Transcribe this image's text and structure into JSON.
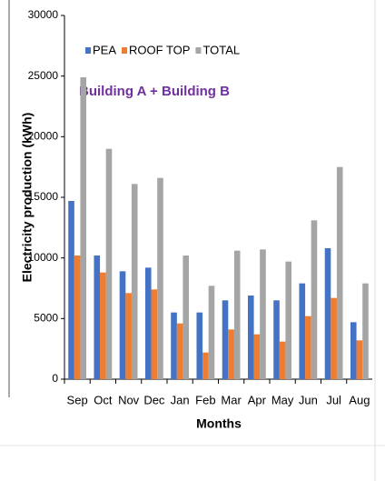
{
  "chart_data": {
    "type": "bar",
    "title": "Building A + Building B",
    "x_label": "Months",
    "y_label": "Electricity production (kWh)",
    "categories": [
      "Sep",
      "Oct",
      "Nov",
      "Dec",
      "Jan",
      "Feb",
      "Mar",
      "Apr",
      "May",
      "Jun",
      "Jul",
      "Aug"
    ],
    "series": [
      {
        "name": "PEA",
        "color": "#4472c4",
        "values": [
          14700,
          10200,
          8900,
          9200,
          5500,
          5500,
          6500,
          6900,
          6500,
          7900,
          10800,
          4700
        ]
      },
      {
        "name": "ROOF TOP",
        "color": "#ed7d31",
        "values": [
          10200,
          8800,
          7100,
          7400,
          4600,
          2200,
          4100,
          3700,
          3100,
          5200,
          6700,
          3200
        ]
      },
      {
        "name": "TOTAL",
        "color": "#a5a5a5",
        "values": [
          24900,
          19000,
          16100,
          16600,
          10200,
          7700,
          10600,
          10700,
          9700,
          13100,
          17500,
          7900
        ]
      }
    ],
    "ylim": [
      0,
      30000
    ],
    "yticks": [
      0,
      5000,
      10000,
      15000,
      20000,
      25000,
      30000
    ],
    "legend": "top-left"
  }
}
